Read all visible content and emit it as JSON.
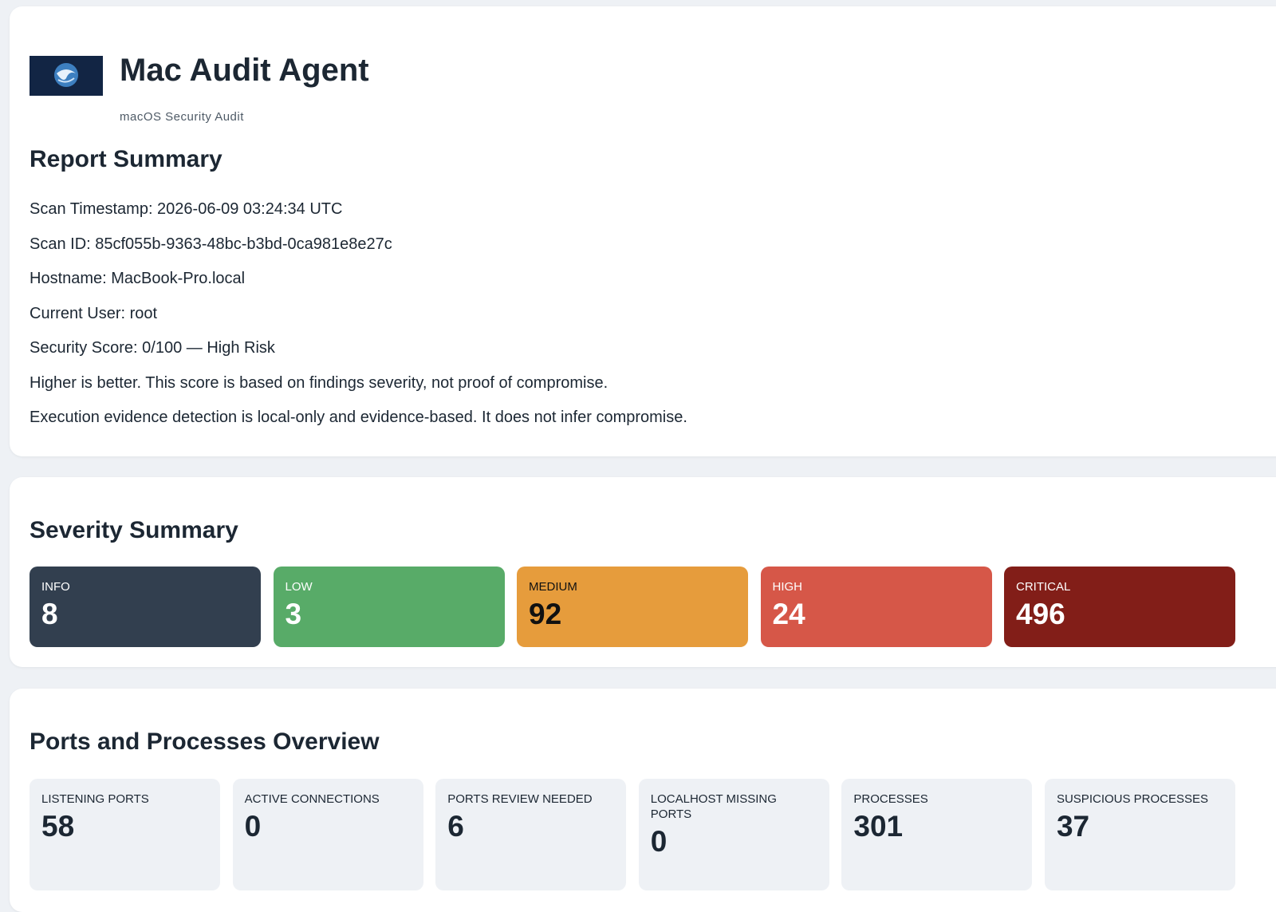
{
  "header": {
    "title": "Mac Audit Agent",
    "subtitle": "macOS Security Audit"
  },
  "report_summary": {
    "title": "Report Summary",
    "lines": [
      "Scan Timestamp: 2026-06-09 03:24:34 UTC",
      "Scan ID: 85cf055b-9363-48bc-b3bd-0ca981e8e27c",
      "Hostname: MacBook-Pro.local",
      "Current User: root",
      "Security Score: 0/100 — High Risk",
      "Higher is better. This score is based on findings severity, not proof of compromise.",
      "Execution evidence detection is local-only and evidence-based. It does not infer compromise."
    ]
  },
  "severity_summary": {
    "title": "Severity Summary",
    "cards": [
      {
        "label": "INFO",
        "value": 8
      },
      {
        "label": "LOW",
        "value": 3
      },
      {
        "label": "MEDIUM",
        "value": 92
      },
      {
        "label": "HIGH",
        "value": 24
      },
      {
        "label": "CRITICAL",
        "value": 496
      }
    ]
  },
  "ports_overview": {
    "title": "Ports and Processes Overview",
    "cards": [
      {
        "label": "LISTENING PORTS",
        "value": 58
      },
      {
        "label": "ACTIVE CONNECTIONS",
        "value": 0
      },
      {
        "label": "PORTS REVIEW NEEDED",
        "value": 6
      },
      {
        "label": "LOCALHOST MISSING PORTS",
        "value": 0
      },
      {
        "label": "PROCESSES",
        "value": 301
      },
      {
        "label": "SUSPICIOUS PROCESSES",
        "value": 37
      }
    ]
  }
}
